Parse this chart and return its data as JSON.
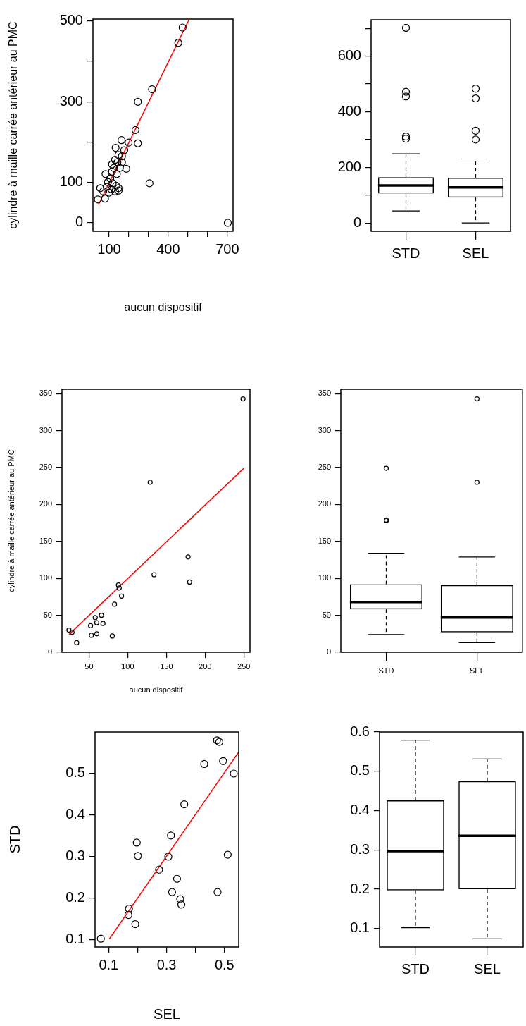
{
  "chart_data": [
    {
      "type": "scatter",
      "xlabel": "aucun dispositif",
      "ylabel": "cylindre à maille carrée antérieur au PMC",
      "marker": "circle",
      "xlim": [
        18,
        729
      ],
      "ylim": [
        -21,
        505
      ],
      "xticks": [
        100,
        {
          "value": 200,
          "label": null
        },
        {
          "value": 300,
          "label": null
        },
        400,
        {
          "value": 500,
          "label": null
        },
        {
          "value": 600,
          "label": null
        },
        700
      ],
      "yticks": [
        0,
        100,
        {
          "value": 200,
          "label": null
        },
        300,
        {
          "value": 400,
          "label": null
        },
        500
      ],
      "series": [
        {
          "type": "scatter",
          "color": "#000000",
          "x": [
            473,
            451,
            318,
            246,
            234,
            246,
            199,
            163,
            133,
            187,
            305,
            702,
            43,
            79,
            55,
            82,
            115,
            130,
            148,
            165,
            177,
            142,
            124,
            139,
            106,
            94,
            118,
            136,
            148,
            112,
            130,
            148,
            165,
            154,
            88,
            70,
            100,
            115
          ],
          "values": [
            484,
            446,
            331,
            300,
            230,
            197,
            199,
            205,
            186,
            134,
            98,
            0,
            58,
            60,
            86,
            121,
            145,
            156,
            168,
            165,
            180,
            150,
            136,
            121,
            110,
            101,
            98,
            92,
            86,
            83,
            78,
            80,
            150,
            136,
            89,
            78,
            75,
            127
          ]
        },
        {
          "type": "line",
          "marker": "none",
          "color": "#ff0000",
          "x": [
            46,
            507
          ],
          "values": [
            45,
            505
          ]
        }
      ]
    },
    {
      "type": "box",
      "categories": [
        "STD",
        "SEL"
      ],
      "ylim": [
        -30,
        731
      ],
      "yticks": [
        0,
        {
          "value": 100,
          "label": null
        },
        200,
        {
          "value": 300,
          "label": null
        },
        400,
        {
          "value": 500,
          "label": null
        },
        600,
        {
          "value": 700,
          "label": null
        }
      ],
      "boxes": [
        {
          "low": 43,
          "q1": 106,
          "median": 135,
          "q3": 165,
          "high": 249,
          "outliers": [
            702,
            472,
            455,
            311,
            303
          ]
        },
        {
          "low": 0,
          "q1": 91,
          "median": 128,
          "q3": 163,
          "high": 230,
          "outliers": [
            483,
            448,
            332,
            300
          ]
        }
      ]
    },
    {
      "type": "scatter",
      "xlabel": "aucun dispositif",
      "ylabel": "cylindre à maille carrée antérieur au PMC",
      "marker": "circle",
      "xlim": [
        15,
        258
      ],
      "ylim": [
        0,
        356
      ],
      "xticks": [
        50,
        100,
        150,
        200,
        250
      ],
      "yticks": [
        0,
        50,
        100,
        150,
        200,
        250,
        300,
        350
      ],
      "series": [
        {
          "type": "scatter",
          "color": "#000000",
          "x": [
            249,
            129,
            178,
            180,
            134,
            88,
            89,
            92,
            83,
            66,
            58,
            52,
            60,
            68,
            53,
            60,
            80,
            34,
            24,
            28
          ],
          "values": [
            343,
            230,
            129,
            95,
            105,
            91,
            87,
            76,
            65,
            50,
            47,
            36,
            40,
            39,
            23,
            25,
            22,
            13,
            30,
            27
          ]
        },
        {
          "type": "line",
          "marker": "none",
          "color": "#ff0000",
          "x": [
            24,
            250
          ],
          "values": [
            24,
            249
          ]
        }
      ]
    },
    {
      "type": "box",
      "categories": [
        "STD",
        "SEL"
      ],
      "ylim": [
        0,
        356
      ],
      "yticks": [
        0,
        50,
        100,
        150,
        200,
        250,
        300,
        350
      ],
      "boxes": [
        {
          "low": 24,
          "q1": 58,
          "median": 68,
          "q3": 92,
          "high": 134,
          "outliers": [
            249,
            179,
            178
          ]
        },
        {
          "low": 13,
          "q1": 27,
          "median": 47,
          "q3": 91,
          "high": 129,
          "outliers": [
            343,
            230
          ]
        }
      ]
    },
    {
      "type": "scatter",
      "xlabel": "SEL",
      "ylabel": "STD",
      "marker": "circle",
      "xlim": [
        0.053,
        0.549
      ],
      "ylim": [
        0.082,
        0.599
      ],
      "xticks": [
        0.1,
        {
          "value": 0.2,
          "label": null
        },
        0.3,
        {
          "value": 0.4,
          "label": null
        },
        0.5
      ],
      "yticks": [
        0.1,
        0.2,
        0.3,
        0.4,
        0.5
      ],
      "series": [
        {
          "type": "scatter",
          "color": "#000000",
          "x": [
            0.073,
            0.17,
            0.168,
            0.192,
            0.197,
            0.201,
            0.274,
            0.306,
            0.315,
            0.319,
            0.336,
            0.347,
            0.351,
            0.361,
            0.43,
            0.474,
            0.482,
            0.495,
            0.532,
            0.511,
            0.476
          ],
          "values": [
            0.102,
            0.174,
            0.159,
            0.137,
            0.333,
            0.301,
            0.268,
            0.299,
            0.35,
            0.214,
            0.246,
            0.197,
            0.184,
            0.425,
            0.522,
            0.579,
            0.575,
            0.529,
            0.499,
            0.304,
            0.214
          ]
        },
        {
          "type": "line",
          "marker": "none",
          "color": "#ff0000",
          "x": [
            0.102,
            0.549
          ],
          "values": [
            0.101,
            0.551
          ]
        }
      ]
    },
    {
      "type": "box",
      "categories": [
        "STD",
        "SEL"
      ],
      "ylim": [
        0.053,
        0.6
      ],
      "yticks": [
        0.1,
        0.2,
        0.3,
        0.4,
        0.5,
        0.6
      ],
      "boxes": [
        {
          "low": 0.102,
          "q1": 0.197,
          "median": 0.297,
          "q3": 0.426,
          "high": 0.579
        },
        {
          "low": 0.074,
          "q1": 0.2,
          "median": 0.336,
          "q3": 0.475,
          "high": 0.531
        }
      ]
    }
  ]
}
